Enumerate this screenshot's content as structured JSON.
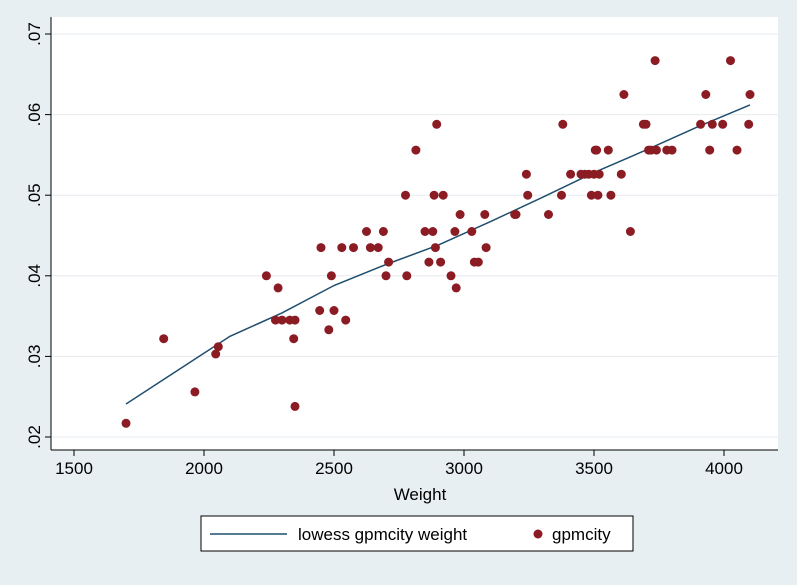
{
  "chart_data": {
    "type": "scatter",
    "title": "",
    "xlabel": "Weight",
    "ylabel": "",
    "xlim": [
      1500,
      4150
    ],
    "ylim": [
      0.02,
      0.07
    ],
    "x_ticks": [
      1500,
      2000,
      2500,
      3000,
      3500,
      4000
    ],
    "x_tick_labels": [
      "1500",
      "2000",
      "2500",
      "3000",
      "3500",
      "4000"
    ],
    "y_ticks": [
      0.02,
      0.03,
      0.04,
      0.05,
      0.06,
      0.07
    ],
    "y_tick_labels": [
      ".02",
      ".03",
      ".04",
      ".05",
      ".06",
      ".07"
    ],
    "grid": "horizontal",
    "legend_position": "bottom",
    "series": [
      {
        "name": "lowess gpmcity weight",
        "kind": "line",
        "color": "#1f4e6e",
        "x": [
          1700,
          1900,
          2100,
          2300,
          2500,
          2700,
          2900,
          3100,
          3300,
          3500,
          3700,
          3900,
          4100
        ],
        "y": [
          0.0241,
          0.0283,
          0.0325,
          0.0354,
          0.0388,
          0.0414,
          0.0438,
          0.0467,
          0.0497,
          0.0528,
          0.0556,
          0.0585,
          0.0612
        ]
      },
      {
        "name": "gpmcity",
        "kind": "scatter",
        "color": "#8b1c24",
        "points": [
          [
            1700,
            0.0217
          ],
          [
            1845,
            0.0322
          ],
          [
            1965,
            0.0256
          ],
          [
            2045,
            0.0303
          ],
          [
            2055,
            0.0312
          ],
          [
            2240,
            0.04
          ],
          [
            2275,
            0.0345
          ],
          [
            2285,
            0.0385
          ],
          [
            2300,
            0.0345
          ],
          [
            2330,
            0.0345
          ],
          [
            2350,
            0.0345
          ],
          [
            2345,
            0.0322
          ],
          [
            2350,
            0.0238
          ],
          [
            2445,
            0.0357
          ],
          [
            2450,
            0.0435
          ],
          [
            2480,
            0.0333
          ],
          [
            2490,
            0.04
          ],
          [
            2500,
            0.0357
          ],
          [
            2530,
            0.0435
          ],
          [
            2545,
            0.0345
          ],
          [
            2575,
            0.0435
          ],
          [
            2625,
            0.0455
          ],
          [
            2640,
            0.0435
          ],
          [
            2670,
            0.0435
          ],
          [
            2690,
            0.0455
          ],
          [
            2700,
            0.04
          ],
          [
            2710,
            0.0417
          ],
          [
            2775,
            0.05
          ],
          [
            2780,
            0.04
          ],
          [
            2815,
            0.0556
          ],
          [
            2850,
            0.0455
          ],
          [
            2865,
            0.0417
          ],
          [
            2880,
            0.0455
          ],
          [
            2885,
            0.05
          ],
          [
            2890,
            0.0435
          ],
          [
            2895,
            0.0588
          ],
          [
            2910,
            0.0417
          ],
          [
            2920,
            0.05
          ],
          [
            2950,
            0.04
          ],
          [
            2965,
            0.0455
          ],
          [
            2970,
            0.0385
          ],
          [
            2985,
            0.0476
          ],
          [
            3030,
            0.0455
          ],
          [
            3040,
            0.0417
          ],
          [
            3055,
            0.0417
          ],
          [
            3080,
            0.0476
          ],
          [
            3085,
            0.0435
          ],
          [
            3195,
            0.0476
          ],
          [
            3200,
            0.0476
          ],
          [
            3240,
            0.0526
          ],
          [
            3245,
            0.05
          ],
          [
            3325,
            0.0476
          ],
          [
            3375,
            0.05
          ],
          [
            3380,
            0.0588
          ],
          [
            3410,
            0.0526
          ],
          [
            3450,
            0.0526
          ],
          [
            3465,
            0.0526
          ],
          [
            3480,
            0.0526
          ],
          [
            3490,
            0.05
          ],
          [
            3500,
            0.0526
          ],
          [
            3505,
            0.0556
          ],
          [
            3510,
            0.0556
          ],
          [
            3515,
            0.05
          ],
          [
            3520,
            0.0526
          ],
          [
            3555,
            0.0556
          ],
          [
            3565,
            0.05
          ],
          [
            3605,
            0.0526
          ],
          [
            3615,
            0.0625
          ],
          [
            3640,
            0.0455
          ],
          [
            3690,
            0.0588
          ],
          [
            3700,
            0.0588
          ],
          [
            3710,
            0.0556
          ],
          [
            3720,
            0.0556
          ],
          [
            3735,
            0.0667
          ],
          [
            3740,
            0.0556
          ],
          [
            3780,
            0.0556
          ],
          [
            3800,
            0.0556
          ],
          [
            3910,
            0.0588
          ],
          [
            3930,
            0.0625
          ],
          [
            3945,
            0.0556
          ],
          [
            3955,
            0.0588
          ],
          [
            3995,
            0.0588
          ],
          [
            4025,
            0.0667
          ],
          [
            4050,
            0.0556
          ],
          [
            4095,
            0.0588
          ],
          [
            4100,
            0.0625
          ]
        ]
      }
    ]
  }
}
